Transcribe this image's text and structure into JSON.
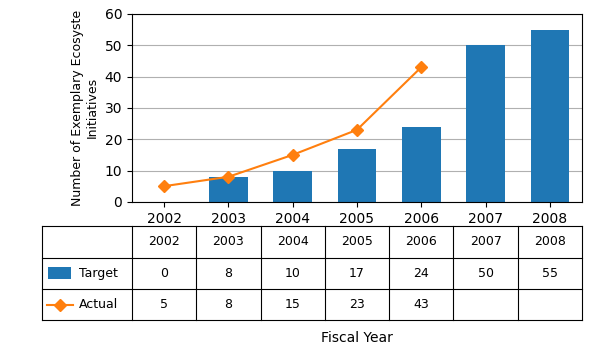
{
  "chart_data": {
    "type": "bar",
    "categories": [
      "2002",
      "2003",
      "2004",
      "2005",
      "2006",
      "2007",
      "2008"
    ],
    "series": [
      {
        "name": "Target",
        "type": "bar",
        "values": [
          0,
          8,
          10,
          17,
          24,
          50,
          55
        ]
      },
      {
        "name": "Actual",
        "type": "line",
        "marker": "diamond",
        "values": [
          5,
          8,
          15,
          23,
          43,
          null,
          null
        ]
      }
    ],
    "y_label": "Number of Exemplary Ecosyste\nInitiatives",
    "x_label": "Fiscal Year",
    "ylim": [
      0,
      60
    ],
    "yticks": [
      0,
      10,
      20,
      30,
      40,
      50,
      60
    ],
    "grid": true,
    "table": true
  }
}
